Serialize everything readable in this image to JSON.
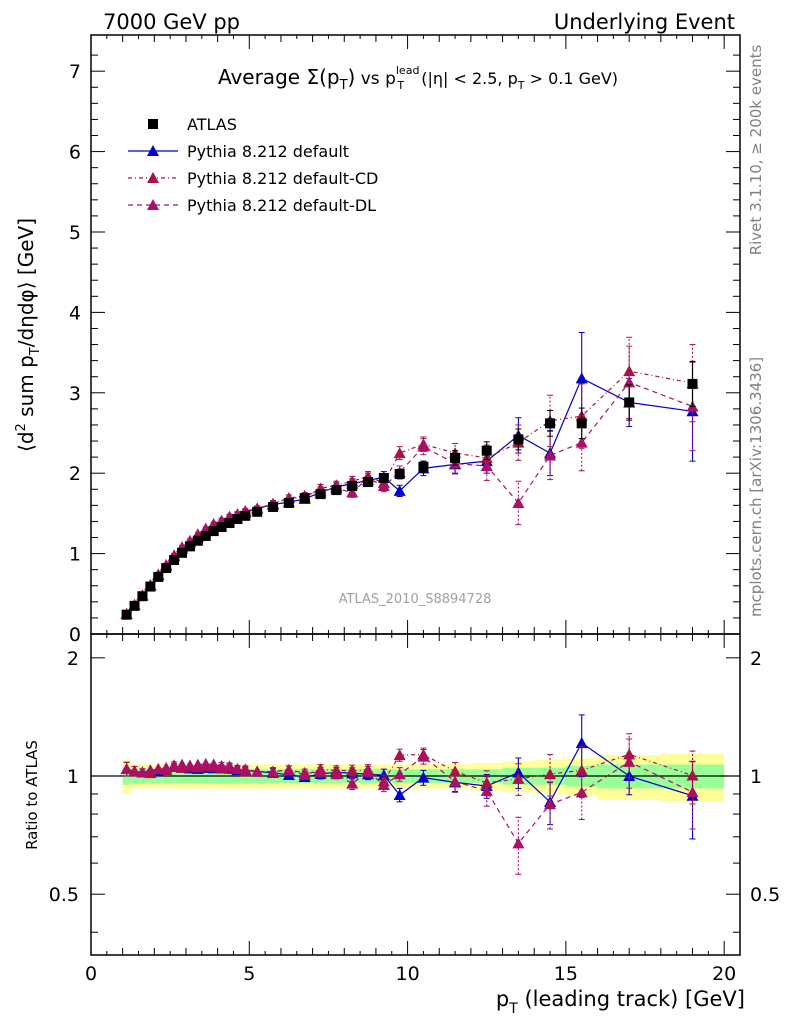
{
  "header": {
    "left": "7000 GeV pp",
    "right": "Underlying Event"
  },
  "side_labels": {
    "rivet": "Rivet 3.1.10, ≥ 200k events",
    "mcplots": "mcplots.cern.ch [arXiv:1306.3436]"
  },
  "watermark": "ATLAS_2010_S8894728",
  "colors": {
    "atlas": "#000000",
    "default": "#0000cc",
    "cd": "#aa1144",
    "dl": "#aa1166",
    "band_inner": "#99ff99",
    "band_outer": "#ffff99"
  },
  "chart_data": {
    "type": "scatter",
    "title_parts": {
      "average": "Average ",
      "sigma": "Σ(p",
      "sigma_sub": "T",
      "sigma_close": ")",
      "vs": " vs p",
      "vs_sup": "lead",
      "vs_sub": "T",
      "tail1": " (|η| < 2.5, p",
      "tail_sub": "T",
      "tail2": " > 0.1 GeV)"
    },
    "xlabel": "p",
    "xlabel_sub": "T",
    "xlabel_tail": " (leading track) [GeV]",
    "ylabel_parts": {
      "a": "⟨d",
      "sup": "2",
      "b": " sum p",
      "sub": "T",
      "c": "/dηdφ⟩ [GeV]"
    },
    "ratio_ylabel": "Ratio to ATLAS",
    "xlim": [
      0,
      20.5
    ],
    "ylim": [
      0,
      7.45
    ],
    "ratio_ylim": [
      0.35,
      2.3
    ],
    "x_ticks": [
      "0",
      "5",
      "10",
      "15",
      "20"
    ],
    "y_ticks": [
      "0",
      "1",
      "2",
      "3",
      "4",
      "5",
      "6",
      "7"
    ],
    "ratio_ticks": [
      "0.5",
      "1",
      "2"
    ],
    "legend": [
      {
        "name": "ATLAS",
        "marker": "square"
      },
      {
        "name": "Pythia 8.212 default",
        "marker": "triangle"
      },
      {
        "name": "Pythia 8.212 default-CD",
        "marker": "triangle"
      },
      {
        "name": "Pythia 8.212 default-DL",
        "marker": "triangle"
      }
    ],
    "x": [
      1.125,
      1.375,
      1.625,
      1.875,
      2.125,
      2.375,
      2.625,
      2.875,
      3.125,
      3.375,
      3.625,
      3.875,
      4.125,
      4.375,
      4.625,
      4.875,
      5.25,
      5.75,
      6.25,
      6.75,
      7.25,
      7.75,
      8.25,
      8.75,
      9.25,
      9.75,
      10.5,
      11.5,
      12.5,
      13.5,
      14.5,
      15.5,
      17.0,
      19.0
    ],
    "series": [
      {
        "name": "ATLAS",
        "values": [
          0.24,
          0.35,
          0.47,
          0.59,
          0.71,
          0.82,
          0.92,
          1.01,
          1.09,
          1.16,
          1.22,
          1.28,
          1.33,
          1.38,
          1.43,
          1.47,
          1.52,
          1.58,
          1.63,
          1.69,
          1.74,
          1.79,
          1.84,
          1.89,
          1.94,
          1.99,
          2.08,
          2.19,
          2.28,
          2.42,
          2.62,
          2.62,
          2.88,
          3.11
        ],
        "errors": [
          0.01,
          0.01,
          0.01,
          0.01,
          0.01,
          0.01,
          0.01,
          0.01,
          0.01,
          0.01,
          0.01,
          0.02,
          0.02,
          0.02,
          0.02,
          0.02,
          0.02,
          0.02,
          0.03,
          0.03,
          0.03,
          0.04,
          0.04,
          0.05,
          0.05,
          0.06,
          0.07,
          0.09,
          0.11,
          0.13,
          0.16,
          0.19,
          0.22,
          0.28
        ]
      },
      {
        "name": "Pythia 8.212 default",
        "values": [
          0.25,
          0.36,
          0.48,
          0.61,
          0.73,
          0.85,
          0.97,
          1.06,
          1.14,
          1.21,
          1.28,
          1.34,
          1.39,
          1.44,
          1.48,
          1.52,
          1.56,
          1.61,
          1.64,
          1.68,
          1.76,
          1.83,
          1.87,
          1.91,
          1.95,
          1.78,
          2.06,
          2.11,
          2.15,
          2.47,
          2.25,
          3.18,
          2.88,
          2.77
        ],
        "errors": [
          0.01,
          0.01,
          0.01,
          0.01,
          0.01,
          0.01,
          0.02,
          0.02,
          0.02,
          0.02,
          0.02,
          0.02,
          0.03,
          0.03,
          0.03,
          0.03,
          0.03,
          0.04,
          0.04,
          0.04,
          0.05,
          0.05,
          0.06,
          0.06,
          0.07,
          0.07,
          0.09,
          0.11,
          0.15,
          0.22,
          0.28,
          0.57,
          0.3,
          0.62
        ]
      },
      {
        "name": "Pythia 8.212 default-CD",
        "values": [
          0.25,
          0.36,
          0.48,
          0.6,
          0.74,
          0.85,
          0.97,
          1.06,
          1.15,
          1.22,
          1.29,
          1.35,
          1.39,
          1.45,
          1.49,
          1.51,
          1.56,
          1.62,
          1.69,
          1.7,
          1.81,
          1.85,
          1.9,
          1.96,
          1.88,
          2.25,
          2.36,
          2.25,
          2.19,
          2.38,
          2.65,
          2.71,
          3.27,
          3.12
        ],
        "errors": [
          0.01,
          0.01,
          0.01,
          0.01,
          0.01,
          0.01,
          0.02,
          0.02,
          0.02,
          0.02,
          0.02,
          0.02,
          0.03,
          0.03,
          0.03,
          0.03,
          0.03,
          0.04,
          0.04,
          0.04,
          0.05,
          0.05,
          0.06,
          0.06,
          0.07,
          0.08,
          0.09,
          0.12,
          0.16,
          0.22,
          0.32,
          0.4,
          0.42,
          0.48
        ]
      },
      {
        "name": "Pythia 8.212 default-DL",
        "values": [
          0.25,
          0.36,
          0.48,
          0.61,
          0.74,
          0.86,
          0.98,
          1.08,
          1.16,
          1.24,
          1.31,
          1.37,
          1.41,
          1.46,
          1.49,
          1.53,
          1.56,
          1.62,
          1.69,
          1.72,
          1.78,
          1.81,
          1.76,
          1.94,
          1.84,
          2.01,
          2.33,
          2.12,
          2.09,
          1.63,
          2.22,
          2.38,
          3.13,
          2.83
        ],
        "errors": [
          0.01,
          0.01,
          0.01,
          0.01,
          0.01,
          0.01,
          0.02,
          0.02,
          0.02,
          0.02,
          0.02,
          0.02,
          0.03,
          0.03,
          0.03,
          0.03,
          0.03,
          0.04,
          0.04,
          0.04,
          0.05,
          0.05,
          0.06,
          0.06,
          0.07,
          0.08,
          0.1,
          0.13,
          0.18,
          0.27,
          0.3,
          0.35,
          0.45,
          0.55
        ]
      }
    ],
    "ratio_band": {
      "edges": [
        1.0,
        1.25,
        1.5,
        1.75,
        2.0,
        2.25,
        2.5,
        2.75,
        3.0,
        3.25,
        3.5,
        3.75,
        4.0,
        4.25,
        4.5,
        4.75,
        5.0,
        5.5,
        6.0,
        6.5,
        7.0,
        7.5,
        8.0,
        8.5,
        9.0,
        9.5,
        10.0,
        11.0,
        12.0,
        13.0,
        14.0,
        15.0,
        16.0,
        18.0,
        20.0
      ],
      "inner": [
        0.05,
        0.04,
        0.04,
        0.04,
        0.04,
        0.04,
        0.04,
        0.04,
        0.04,
        0.04,
        0.04,
        0.04,
        0.04,
        0.04,
        0.04,
        0.04,
        0.04,
        0.04,
        0.04,
        0.04,
        0.04,
        0.04,
        0.04,
        0.04,
        0.04,
        0.04,
        0.04,
        0.04,
        0.04,
        0.05,
        0.05,
        0.06,
        0.07,
        0.07
      ],
      "outer": [
        0.1,
        0.07,
        0.07,
        0.07,
        0.07,
        0.07,
        0.07,
        0.07,
        0.07,
        0.07,
        0.07,
        0.07,
        0.07,
        0.07,
        0.07,
        0.07,
        0.07,
        0.07,
        0.07,
        0.07,
        0.07,
        0.07,
        0.07,
        0.07,
        0.07,
        0.07,
        0.07,
        0.07,
        0.08,
        0.09,
        0.1,
        0.11,
        0.13,
        0.14
      ]
    }
  }
}
